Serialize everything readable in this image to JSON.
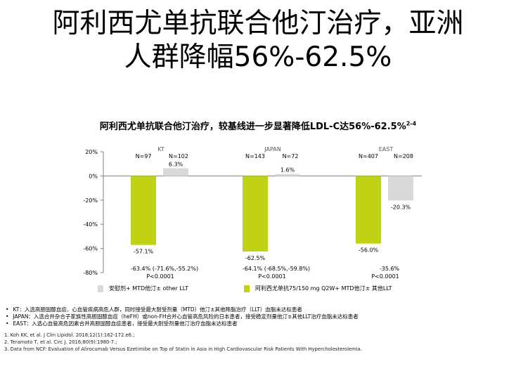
{
  "title": {
    "line1": "阿利西尤单抗联合他汀治疗，亚洲",
    "line2": "人群降幅56%-62.5%"
  },
  "subtitle": {
    "text": "阿利西尤单抗联合他汀治疗，较基线进一步显著降低LDL-C达56%-62.5%",
    "superscript": "2-4"
  },
  "chart_data": {
    "type": "bar",
    "title": "",
    "xlabel": "",
    "ylabel": "",
    "ylim": [
      -80,
      20
    ],
    "yticks": [
      "20%",
      "0%",
      "-20%",
      "-40%",
      "-60%",
      "-80%"
    ],
    "ytick_values": [
      20,
      0,
      -20,
      -40,
      -60,
      -80
    ],
    "grid": false,
    "legend_position": "bottom",
    "colors": {
      "alirocumab": "#c1d214",
      "placebo": "#d9d9d9",
      "axis": "#7f7f7f"
    },
    "groups": [
      {
        "name": "KT",
        "n_alirocumab": "N=97",
        "n_placebo": "N=102",
        "alirocumab": -57.1,
        "placebo": 6.3,
        "alirocumab_label": "-57.1%",
        "placebo_label": "6.3%",
        "diff_text": "-63.4% (-71.6%,-55.2%)",
        "p_text": "P<0.0001"
      },
      {
        "name": "JAPAN",
        "n_alirocumab": "N=143",
        "n_placebo": "N=72",
        "alirocumab": -62.5,
        "placebo": 1.6,
        "alirocumab_label": "-62.5%",
        "placebo_label": "1.6%",
        "diff_text": "-64.1% (-68.5%,-59.8%)",
        "p_text": "P<0.0001"
      },
      {
        "name": "EAST",
        "n_alirocumab": "N=407",
        "n_placebo": "N=208",
        "alirocumab": -56.0,
        "placebo": -20.3,
        "alirocumab_label": "-56.0%",
        "placebo_label": "-20.3%",
        "diff_text": "-35.6%",
        "p_text": "P<0.0001"
      }
    ],
    "series": [
      {
        "name": "安慰剂+ MTD他汀± other LLT",
        "key": "placebo"
      },
      {
        "name": "阿利西尤单抗75/150 mg Q2W+ MTD他汀± 其他LLT",
        "key": "alirocumab"
      }
    ]
  },
  "legend": {
    "placebo": "安慰剂+ MTD他汀± other LLT",
    "alirocumab": "阿利西尤单抗75/150 mg Q2W+ MTD他汀± 其他LLT"
  },
  "notes": {
    "bullets": [
      "KT：入选高胆固醇血症、心血管疾病高危人群，同时接受最大耐受剂量（MTD）他汀±其他降脂治疗（LLT）血脂未达标患者",
      "JAPAN：入选合并杂合子家族性高胆固醇血症（heFH）或non-FH合并心血管高危风险的日本患者，接受稳定剂量他汀±其他LLT治疗血脂未达标患者",
      "EAST：入选心血管高危因素合并高胆固醇血症患者，接受最大耐受剂量他汀治疗血脂未达标患者"
    ],
    "refs": [
      "1. Koh KK, et al. J Clin Lipidol. 2018;12(1):162-172.e6.;",
      "2. Teramoto T, et al. Circ J. 2016;80(9):1980-7.;",
      "3. Data from NCF: Evaluation of Alirocumab Versus Ezetimibe on Top of Statin in Asia in High Cardiovascular Risk Patients With Hypercholesterolemia."
    ]
  }
}
